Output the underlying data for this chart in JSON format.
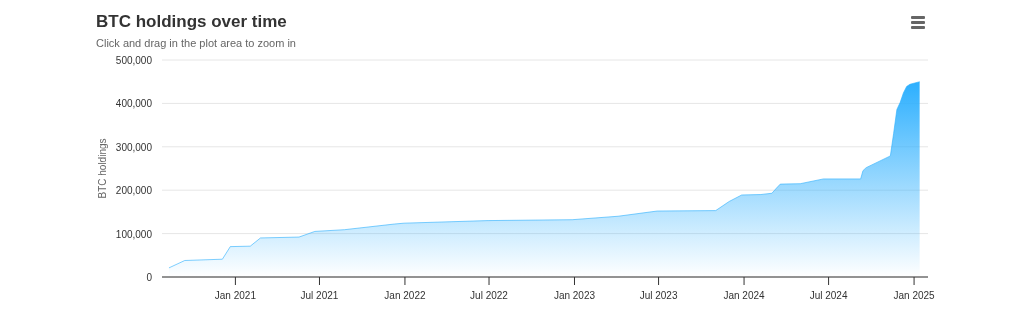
{
  "chart_data": {
    "type": "area",
    "title": "BTC holdings over time",
    "subtitle": "Click and drag in the plot area to zoom in",
    "ylabel": "BTC holdings",
    "x": [
      "2020-08-11",
      "2020-09-14",
      "2020-12-04",
      "2020-12-21",
      "2021-02-02",
      "2021-02-24",
      "2021-05-18",
      "2021-06-21",
      "2021-08-24",
      "2021-12-09",
      "2021-12-30",
      "2022-06-29",
      "2022-12-27",
      "2023-04-05",
      "2023-06-28",
      "2023-11-01",
      "2023-11-30",
      "2023-12-27",
      "2024-02-06",
      "2024-03-01",
      "2024-03-11",
      "2024-03-19",
      "2024-05-01",
      "2024-06-20",
      "2024-09-08",
      "2024-09-13",
      "2024-09-20",
      "2024-11-11",
      "2024-11-18",
      "2024-11-25",
      "2024-12-02",
      "2024-12-09",
      "2024-12-16",
      "2024-12-23",
      "2025-01-13"
    ],
    "series": [
      {
        "color": "#2caffe",
        "values": [
          21000,
          38000,
          41000,
          70000,
          71000,
          90000,
          92000,
          105000,
          109000,
          122000,
          124000,
          130000,
          132000,
          140000,
          152000,
          153000,
          174000,
          189000,
          190000,
          193000,
          205000,
          214000,
          215000,
          226000,
          226000,
          245000,
          252000,
          279000,
          331000,
          386000,
          402000,
          424000,
          439000,
          444000,
          450000
        ]
      }
    ],
    "xlim": [
      "2020-07-27",
      "2025-01-31"
    ],
    "xticks": [
      {
        "value": "2021-01-01",
        "label": "Jan 2021"
      },
      {
        "value": "2021-07-01",
        "label": "Jul 2021"
      },
      {
        "value": "2022-01-01",
        "label": "Jan 2022"
      },
      {
        "value": "2022-07-01",
        "label": "Jul 2022"
      },
      {
        "value": "2023-01-01",
        "label": "Jan 2023"
      },
      {
        "value": "2023-07-01",
        "label": "Jul 2023"
      },
      {
        "value": "2024-01-01",
        "label": "Jan 2024"
      },
      {
        "value": "2024-07-01",
        "label": "Jul 2024"
      },
      {
        "value": "2025-01-01",
        "label": "Jan 2025"
      }
    ],
    "ylim": [
      0,
      500000
    ],
    "yticks": [
      {
        "value": 0,
        "label": "0"
      },
      {
        "value": 100000,
        "label": "100,000"
      },
      {
        "value": 200000,
        "label": "200,000"
      },
      {
        "value": 300000,
        "label": "300,000"
      },
      {
        "value": 400000,
        "label": "400,000"
      },
      {
        "value": 500000,
        "label": "500,000"
      }
    ],
    "grid": "y"
  }
}
